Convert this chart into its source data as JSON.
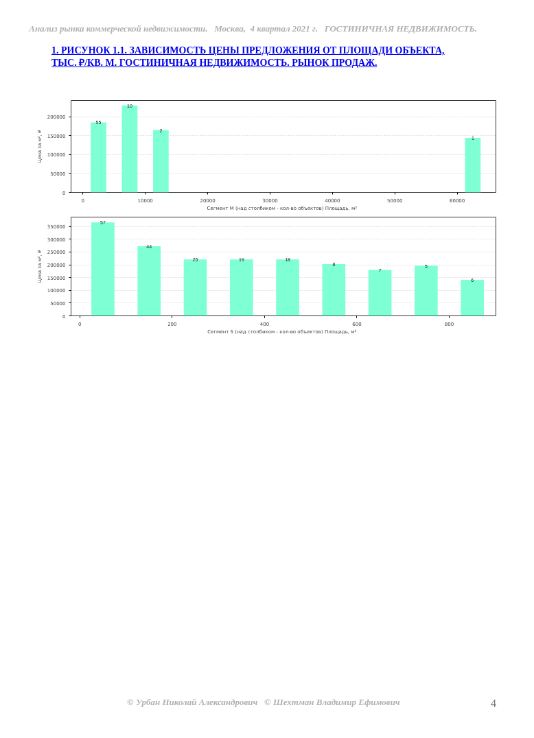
{
  "chart_data": [
    {
      "type": "bar",
      "title": "1.  РИСУНОК 1.1. ЗАВИСИМОСТЬ ЦЕНЫ ПРЕДЛОЖЕНИЯ ОТ ПЛОЩАДИ ОБЪЕКТА, ТЫС. ₽/КВ. М. ГОСТИНИЧНАЯ НЕДВИЖИМОСТЬ. РЫНОК ПРОДАЖ.",
      "xlabel": "Сегмент М (над столбиком - кол-во объектов)   Площадь, м²",
      "ylabel": "Цена за м², ₽",
      "x": [
        2500,
        7500,
        12500,
        62500
      ],
      "series": [
        {
          "color": "#7fffd4",
          "values": [
            185000,
            230000,
            165000,
            144000
          ]
        }
      ],
      "annotations": [
        "Анализ рынка коммерческой недвижимости.   Москва,  4 квартал 2021 г.   ГОСТИНИЧНАЯ НЕДВИЖИМОСТЬ.",
        {
          "text": "55",
          "x": 2500,
          "y": 185000
        },
        {
          "text": "10",
          "x": 7500,
          "y": 230000
        },
        {
          "text": "2",
          "x": 12500,
          "y": 165000
        },
        {
          "text": "1",
          "x": 62500,
          "y": 144000
        }
      ],
      "xlim": [
        -1900,
        66200
      ],
      "xticks": [
        0,
        10000,
        20000,
        30000,
        40000,
        50000,
        60000
      ],
      "ylim": [
        0,
        243000
      ],
      "yticks": [
        0,
        50000,
        100000,
        150000,
        200000
      ],
      "grid": "y"
    },
    {
      "type": "bar",
      "xlabel": "Сегмент S (над столбиком - кол-во объектов)   Площадь, м²",
      "ylabel": "Цена за м², ₽",
      "x": [
        50,
        150,
        250,
        350,
        450,
        550,
        650,
        750,
        850
      ],
      "series": [
        {
          "color": "#7fffd4",
          "values": [
            366000,
            273000,
            221000,
            221000,
            221000,
            203000,
            180000,
            196000,
            141000
          ]
        }
      ],
      "annotations": [
        "© Урбан Николай Александрович   © Шехтман Владимир Ефимович",
        "4",
        {
          "text": "57",
          "x": 50,
          "y": 366000
        },
        {
          "text": "44",
          "x": 150,
          "y": 273000
        },
        {
          "text": "25",
          "x": 250,
          "y": 221000
        },
        {
          "text": "19",
          "x": 350,
          "y": 221000
        },
        {
          "text": "18",
          "x": 450,
          "y": 221000
        },
        {
          "text": "8",
          "x": 550,
          "y": 203000
        },
        {
          "text": "7",
          "x": 650,
          "y": 180000
        },
        {
          "text": "5",
          "x": 750,
          "y": 196000
        },
        {
          "text": "6",
          "x": 850,
          "y": 141000
        }
      ],
      "xlim": [
        -19,
        901
      ],
      "xticks": [
        0,
        200,
        400,
        600,
        800
      ],
      "ylim": [
        0,
        387000
      ],
      "yticks": [
        0,
        50000,
        100000,
        150000,
        200000,
        250000,
        300000,
        350000
      ],
      "grid": "y"
    }
  ]
}
